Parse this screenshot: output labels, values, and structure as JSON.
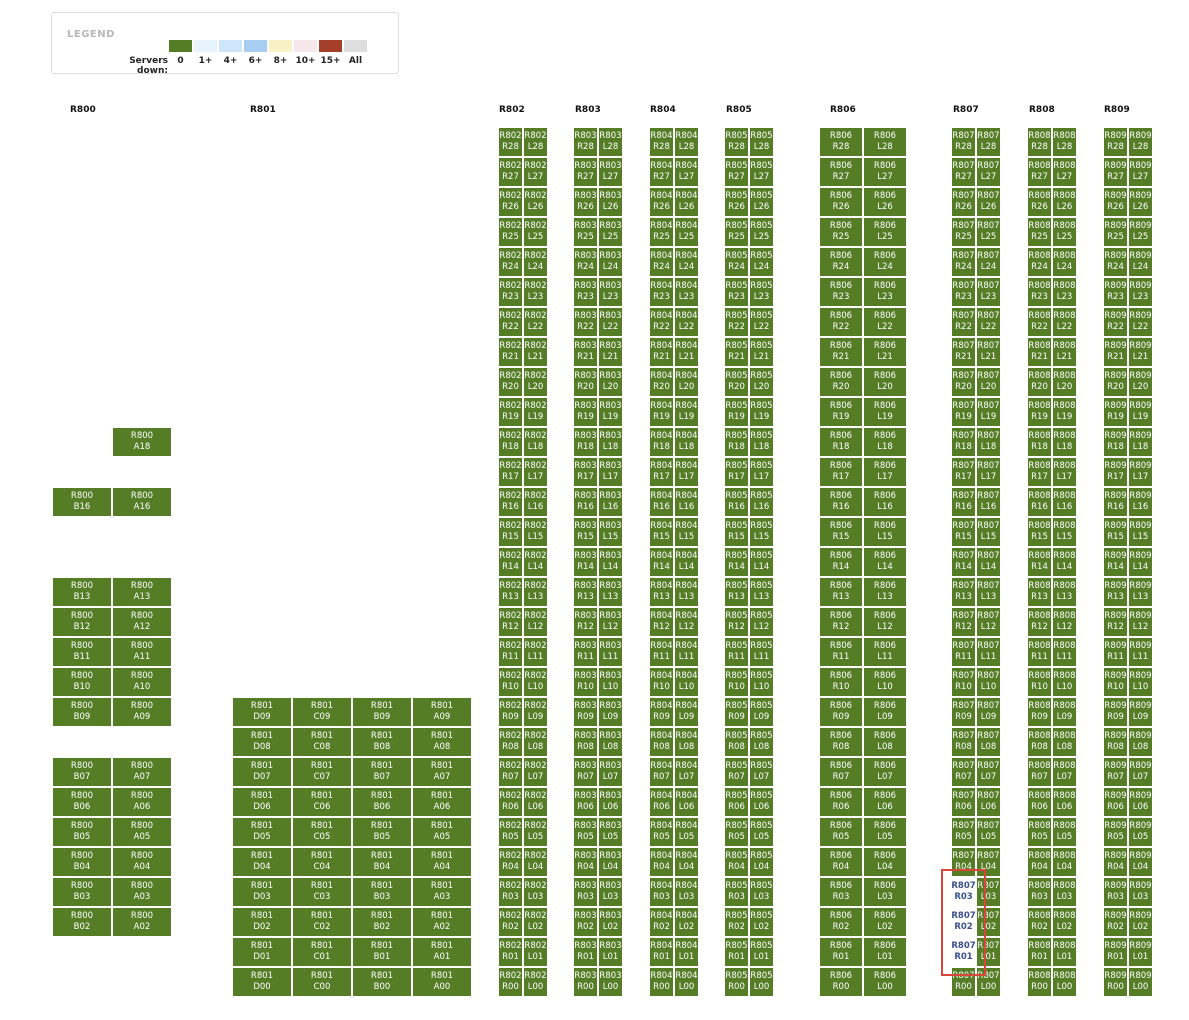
{
  "legend": {
    "title": "LEGEND",
    "label": "Servers down:",
    "items": [
      {
        "label": "0",
        "color": "#547d26"
      },
      {
        "label": "1+",
        "color": "#e8f4fd"
      },
      {
        "label": "4+",
        "color": "#cfe6fa"
      },
      {
        "label": "6+",
        "color": "#a7cdf3"
      },
      {
        "label": "8+",
        "color": "#f8f1c6"
      },
      {
        "label": "10+",
        "color": "#f6e7ea"
      },
      {
        "label": "15+",
        "color": "#a33f2a"
      },
      {
        "label": "All",
        "color": "#dedede"
      }
    ]
  },
  "groups": [
    "R800",
    "R801",
    "R802",
    "R803",
    "R804",
    "R805",
    "R806",
    "R807",
    "R808",
    "R809"
  ],
  "r800": {
    "columns": [
      "B",
      "A"
    ],
    "rows": [
      {
        "n": "18",
        "b": false,
        "a": true
      },
      {
        "n": "16",
        "b": true,
        "a": true
      },
      {
        "n": "13",
        "b": true,
        "a": true
      },
      {
        "n": "12",
        "b": true,
        "a": true
      },
      {
        "n": "11",
        "b": true,
        "a": true
      },
      {
        "n": "10",
        "b": true,
        "a": true
      },
      {
        "n": "09",
        "b": true,
        "a": true
      },
      {
        "n": "07",
        "b": true,
        "a": true
      },
      {
        "n": "06",
        "b": true,
        "a": true
      },
      {
        "n": "05",
        "b": true,
        "a": true
      },
      {
        "n": "04",
        "b": true,
        "a": true
      },
      {
        "n": "03",
        "b": true,
        "a": true
      },
      {
        "n": "02",
        "b": true,
        "a": true
      }
    ]
  },
  "r801": {
    "columns": [
      "D",
      "C",
      "B",
      "A"
    ],
    "rows": [
      "09",
      "08",
      "07",
      "06",
      "05",
      "04",
      "03",
      "02",
      "01",
      "00"
    ]
  },
  "pair_groups": {
    "columns": [
      "R",
      "L"
    ],
    "rows": [
      "28",
      "27",
      "26",
      "25",
      "24",
      "23",
      "22",
      "21",
      "20",
      "19",
      "18",
      "17",
      "16",
      "15",
      "14",
      "13",
      "12",
      "11",
      "10",
      "09",
      "08",
      "07",
      "06",
      "05",
      "04",
      "03",
      "02",
      "01",
      "00"
    ]
  },
  "selected_racks": [
    "R807 R03",
    "R807 R02",
    "R807 R01"
  ]
}
